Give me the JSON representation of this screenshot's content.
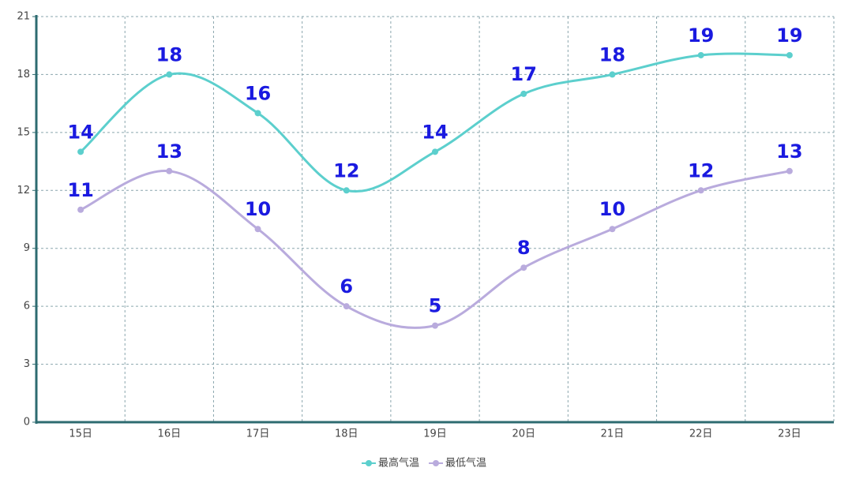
{
  "chart_data": {
    "type": "line",
    "categories": [
      "15日",
      "16日",
      "17日",
      "18日",
      "19日",
      "20日",
      "21日",
      "22日",
      "23日"
    ],
    "series": [
      {
        "name": "最高气温",
        "color": "#5ccfcd",
        "values": [
          14,
          18,
          16,
          12,
          14,
          17,
          18,
          19,
          19
        ]
      },
      {
        "name": "最低气温",
        "color": "#b9abdd",
        "values": [
          11,
          13,
          10,
          6,
          5,
          8,
          10,
          12,
          13
        ]
      }
    ],
    "ylim": [
      0,
      21
    ],
    "yticks": [
      0,
      3,
      6,
      9,
      12,
      15,
      18,
      21
    ],
    "grid": true,
    "smooth": true,
    "legend": "bottom"
  }
}
